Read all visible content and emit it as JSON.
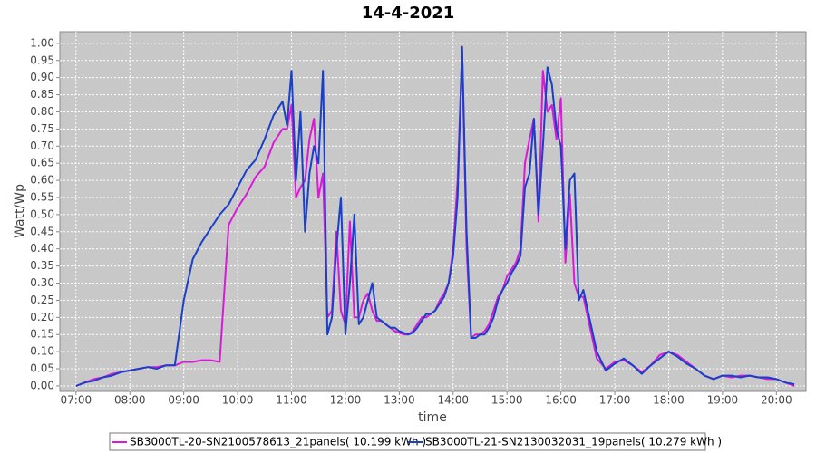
{
  "chart_data": {
    "type": "line",
    "title": "14-4-2021",
    "x_label": "time",
    "y_label": "Watt/Wp",
    "x": [
      "07:00",
      "07:10",
      "07:20",
      "07:30",
      "07:40",
      "07:50",
      "08:00",
      "08:10",
      "08:20",
      "08:30",
      "08:40",
      "08:50",
      "09:00",
      "09:10",
      "09:20",
      "09:30",
      "09:40",
      "09:50",
      "10:00",
      "10:10",
      "10:20",
      "10:30",
      "10:40",
      "10:50",
      "10:55",
      "11:00",
      "11:05",
      "11:10",
      "11:15",
      "11:20",
      "11:25",
      "11:30",
      "11:35",
      "11:40",
      "11:45",
      "11:50",
      "11:55",
      "12:00",
      "12:05",
      "12:10",
      "12:15",
      "12:20",
      "12:25",
      "12:30",
      "12:35",
      "12:40",
      "12:45",
      "12:50",
      "12:55",
      "13:00",
      "13:05",
      "13:10",
      "13:15",
      "13:20",
      "13:25",
      "13:30",
      "13:35",
      "13:40",
      "13:45",
      "13:50",
      "13:55",
      "14:00",
      "14:05",
      "14:10",
      "14:15",
      "14:20",
      "14:25",
      "14:30",
      "14:35",
      "14:40",
      "14:45",
      "14:50",
      "14:55",
      "15:00",
      "15:05",
      "15:10",
      "15:15",
      "15:20",
      "15:25",
      "15:30",
      "15:35",
      "15:40",
      "15:45",
      "15:50",
      "15:55",
      "16:00",
      "16:05",
      "16:10",
      "16:15",
      "16:20",
      "16:25",
      "16:30",
      "16:40",
      "16:50",
      "17:00",
      "17:10",
      "17:20",
      "17:30",
      "17:40",
      "17:50",
      "18:00",
      "18:10",
      "18:20",
      "18:30",
      "18:40",
      "18:50",
      "19:00",
      "19:10",
      "19:20",
      "19:30",
      "19:40",
      "19:50",
      "20:00",
      "20:10",
      "20:20"
    ],
    "series": [
      {
        "name": "SB3000TL-20-SN2100578613_21panels( 10.199 kWh )",
        "color": "#d81ad8",
        "values": [
          0,
          0.01,
          0.02,
          0.025,
          0.035,
          0.04,
          0.045,
          0.05,
          0.055,
          0.055,
          0.06,
          0.06,
          0.07,
          0.07,
          0.075,
          0.075,
          0.07,
          0.47,
          0.52,
          0.56,
          0.61,
          0.64,
          0.71,
          0.75,
          0.75,
          0.82,
          0.55,
          0.58,
          0.6,
          0.72,
          0.78,
          0.55,
          0.62,
          0.2,
          0.22,
          0.45,
          0.22,
          0.18,
          0.48,
          0.2,
          0.2,
          0.25,
          0.27,
          0.22,
          0.19,
          0.19,
          0.18,
          0.17,
          0.16,
          0.155,
          0.15,
          0.15,
          0.16,
          0.18,
          0.2,
          0.2,
          0.21,
          0.22,
          0.25,
          0.27,
          0.3,
          0.4,
          0.6,
          0.98,
          0.4,
          0.14,
          0.15,
          0.15,
          0.16,
          0.18,
          0.22,
          0.26,
          0.28,
          0.32,
          0.34,
          0.36,
          0.4,
          0.65,
          0.72,
          0.78,
          0.48,
          0.92,
          0.8,
          0.82,
          0.72,
          0.84,
          0.36,
          0.56,
          0.3,
          0.26,
          0.26,
          0.2,
          0.08,
          0.05,
          0.07,
          0.075,
          0.06,
          0.04,
          0.06,
          0.09,
          0.1,
          0.09,
          0.07,
          0.05,
          0.03,
          0.02,
          0.03,
          0.025,
          0.03,
          0.03,
          0.025,
          0.02,
          0.02,
          0.01,
          0
        ]
      },
      {
        "name": "SB3000TL-21-SN2130032031_19panels( 10.279 kWh )",
        "color": "#1a3fc8",
        "values": [
          0,
          0.01,
          0.015,
          0.025,
          0.03,
          0.04,
          0.045,
          0.05,
          0.055,
          0.05,
          0.06,
          0.06,
          0.25,
          0.37,
          0.42,
          0.46,
          0.5,
          0.53,
          0.58,
          0.63,
          0.66,
          0.72,
          0.79,
          0.83,
          0.76,
          0.92,
          0.6,
          0.8,
          0.45,
          0.62,
          0.7,
          0.65,
          0.92,
          0.15,
          0.2,
          0.4,
          0.55,
          0.15,
          0.3,
          0.5,
          0.18,
          0.2,
          0.25,
          0.3,
          0.2,
          0.19,
          0.18,
          0.17,
          0.17,
          0.16,
          0.155,
          0.15,
          0.155,
          0.17,
          0.19,
          0.21,
          0.21,
          0.22,
          0.24,
          0.26,
          0.3,
          0.38,
          0.55,
          0.99,
          0.45,
          0.14,
          0.14,
          0.15,
          0.15,
          0.17,
          0.2,
          0.25,
          0.28,
          0.3,
          0.33,
          0.35,
          0.38,
          0.58,
          0.62,
          0.78,
          0.5,
          0.7,
          0.93,
          0.88,
          0.75,
          0.7,
          0.4,
          0.6,
          0.62,
          0.25,
          0.28,
          0.22,
          0.1,
          0.045,
          0.065,
          0.08,
          0.06,
          0.035,
          0.06,
          0.08,
          0.1,
          0.085,
          0.065,
          0.05,
          0.03,
          0.02,
          0.03,
          0.03,
          0.025,
          0.03,
          0.025,
          0.025,
          0.02,
          0.01,
          0.005
        ]
      }
    ],
    "xlim": [
      "06:42",
      "20:33"
    ],
    "xticks": [
      "07:00",
      "08:00",
      "09:00",
      "10:00",
      "11:00",
      "12:00",
      "13:00",
      "14:00",
      "15:00",
      "16:00",
      "17:00",
      "18:00",
      "19:00",
      "20:00"
    ],
    "ylim": [
      -0.016,
      1.034
    ],
    "yticks": [
      {
        "value": 0,
        "label": "0.00"
      },
      {
        "value": 0.05,
        "label": "0.05"
      },
      {
        "value": 0.1,
        "label": "0.10"
      },
      {
        "value": 0.15,
        "label": "0.15"
      },
      {
        "value": 0.2,
        "label": "0.20"
      },
      {
        "value": 0.25,
        "label": "0.25"
      },
      {
        "value": 0.3,
        "label": "0.30"
      },
      {
        "value": 0.35,
        "label": "0.35"
      },
      {
        "value": 0.4,
        "label": "0.40"
      },
      {
        "value": 0.45,
        "label": "0.45"
      },
      {
        "value": 0.5,
        "label": "0.50"
      },
      {
        "value": 0.55,
        "label": "0.55"
      },
      {
        "value": 0.6,
        "label": "0.60"
      },
      {
        "value": 0.65,
        "label": "0.65"
      },
      {
        "value": 0.7,
        "label": "0.70"
      },
      {
        "value": 0.75,
        "label": "0.75"
      },
      {
        "value": 0.8,
        "label": "0.80"
      },
      {
        "value": 0.85,
        "label": "0.85"
      },
      {
        "value": 0.9,
        "label": "0.90"
      },
      {
        "value": 0.95,
        "label": "0.95"
      },
      {
        "value": 1,
        "label": "1.00"
      }
    ],
    "grid": true
  }
}
